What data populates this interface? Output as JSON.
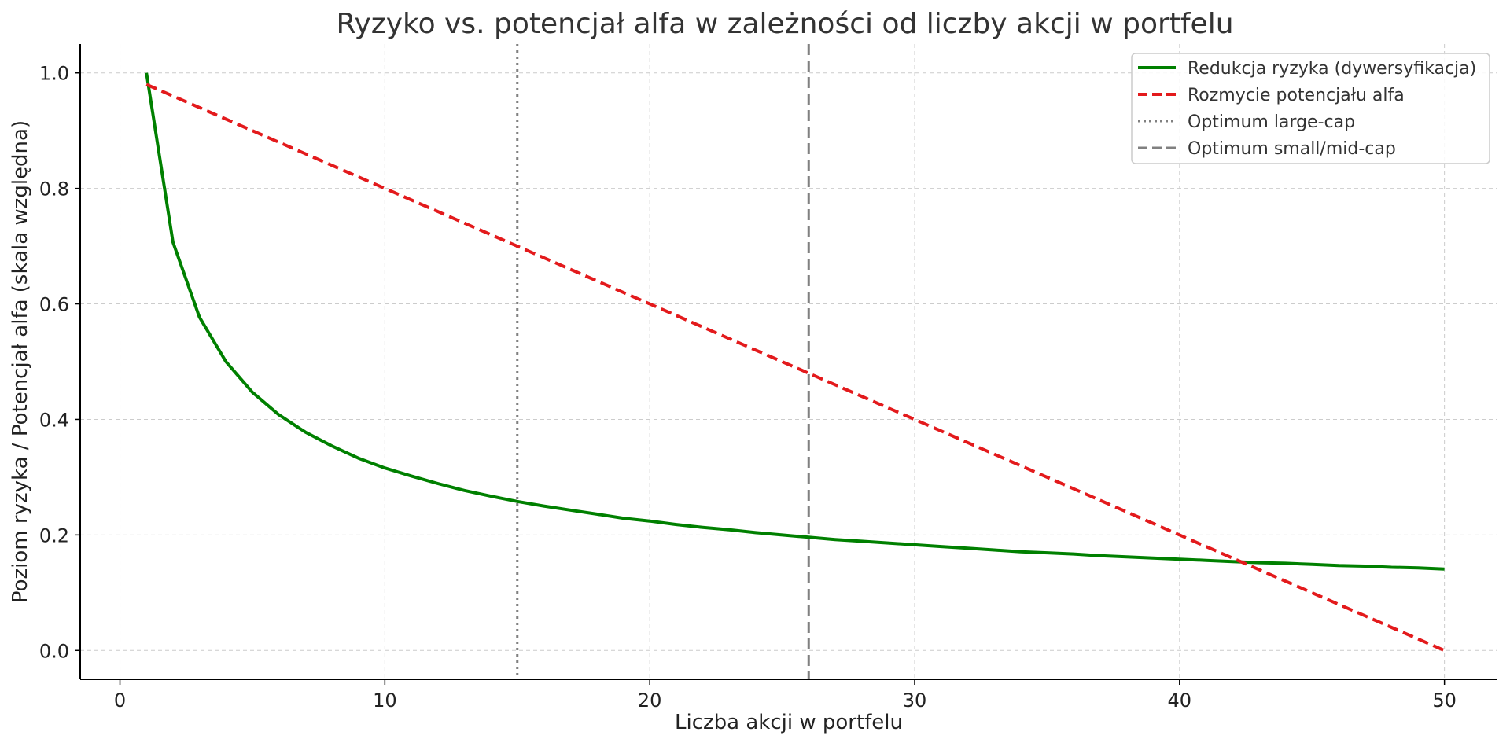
{
  "chart_data": {
    "type": "line",
    "title": "Ryzyko vs. potencjał alfa w zależności od liczby akcji w portfelu",
    "xlabel": "Liczba akcji w portfelu",
    "ylabel": "Poziom ryzyka / Potencjał alfa (skala względna)",
    "xlim": [
      -1.5,
      52
    ],
    "ylim": [
      -0.05,
      1.05
    ],
    "xticks": [
      0,
      10,
      20,
      30,
      40,
      50
    ],
    "yticks": [
      0.0,
      0.2,
      0.4,
      0.6,
      0.8,
      1.0
    ],
    "xtick_labels": [
      "0",
      "10",
      "20",
      "30",
      "40",
      "50"
    ],
    "ytick_labels": [
      "0.0",
      "0.2",
      "0.4",
      "0.6",
      "0.8",
      "1.0"
    ],
    "grid": true,
    "legend_position": "top-right",
    "series": [
      {
        "name": "Redukcja ryzyka (dywersyfikacja)",
        "style": "solid",
        "color": "#008000",
        "x": [
          1,
          2,
          3,
          4,
          5,
          6,
          7,
          8,
          9,
          10,
          11,
          12,
          13,
          14,
          15,
          16,
          17,
          18,
          19,
          20,
          21,
          22,
          23,
          24,
          25,
          26,
          27,
          28,
          29,
          30,
          31,
          32,
          33,
          34,
          35,
          36,
          37,
          38,
          39,
          40,
          41,
          42,
          43,
          44,
          45,
          46,
          47,
          48,
          49,
          50
        ],
        "y": [
          1.0,
          0.707,
          0.577,
          0.5,
          0.447,
          0.408,
          0.378,
          0.354,
          0.333,
          0.316,
          0.302,
          0.289,
          0.277,
          0.267,
          0.258,
          0.25,
          0.243,
          0.236,
          0.229,
          0.224,
          0.218,
          0.213,
          0.209,
          0.204,
          0.2,
          0.196,
          0.192,
          0.189,
          0.186,
          0.183,
          0.18,
          0.177,
          0.174,
          0.171,
          0.169,
          0.167,
          0.164,
          0.162,
          0.16,
          0.158,
          0.156,
          0.154,
          0.152,
          0.151,
          0.149,
          0.147,
          0.146,
          0.144,
          0.143,
          0.141
        ]
      },
      {
        "name": "Rozmycie potencjału alfa",
        "style": "dashed",
        "color": "#e31a1c",
        "x": [
          1,
          50
        ],
        "y": [
          0.98,
          0.0
        ]
      }
    ],
    "vlines": [
      {
        "name": "Optimum large-cap",
        "x": 15,
        "style": "dotted",
        "color": "#808080"
      },
      {
        "name": "Optimum small/mid-cap",
        "x": 26,
        "style": "dashed",
        "color": "#808080"
      }
    ]
  }
}
